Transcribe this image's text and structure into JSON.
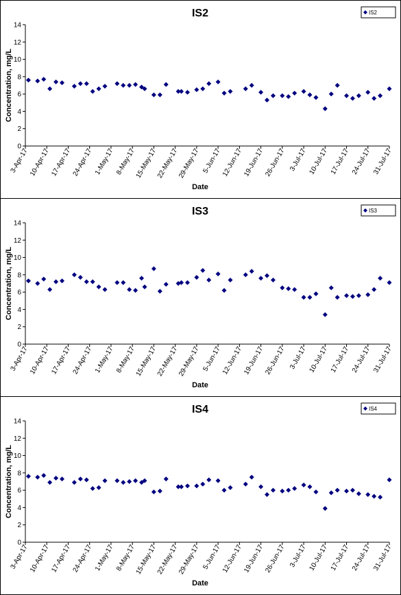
{
  "chart_data": [
    {
      "type": "scatter",
      "title": "IS2",
      "x_label": "Date",
      "y_label": "Concentration, mg/L",
      "x": [
        "2017-04-04",
        "2017-04-07",
        "2017-04-09",
        "2017-04-11",
        "2017-04-13",
        "2017-04-15",
        "2017-04-19",
        "2017-04-21",
        "2017-04-23",
        "2017-04-25",
        "2017-04-27",
        "2017-04-29",
        "2017-05-03",
        "2017-05-05",
        "2017-05-07",
        "2017-05-09",
        "2017-05-11",
        "2017-05-12",
        "2017-05-15",
        "2017-05-17",
        "2017-05-19",
        "2017-05-23",
        "2017-05-24",
        "2017-05-26",
        "2017-05-29",
        "2017-05-31",
        "2017-06-02",
        "2017-06-05",
        "2017-06-07",
        "2017-06-09",
        "2017-06-14",
        "2017-06-16",
        "2017-06-19",
        "2017-06-21",
        "2017-06-23",
        "2017-06-26",
        "2017-06-28",
        "2017-06-30",
        "2017-07-03",
        "2017-07-05",
        "2017-07-07",
        "2017-07-10",
        "2017-07-12",
        "2017-07-14",
        "2017-07-17",
        "2017-07-19",
        "2017-07-21",
        "2017-07-24",
        "2017-07-26",
        "2017-07-28",
        "2017-07-31"
      ],
      "series": [
        {
          "name": "IS2",
          "color": "#000080",
          "values": [
            7.6,
            7.5,
            7.7,
            6.6,
            7.4,
            7.3,
            6.9,
            7.2,
            7.2,
            6.3,
            6.6,
            6.9,
            7.2,
            7.0,
            7.0,
            7.1,
            6.8,
            6.6,
            5.9,
            5.9,
            7.1,
            6.3,
            6.3,
            6.2,
            6.5,
            6.6,
            7.2,
            7.4,
            6.1,
            6.3,
            6.6,
            7.0,
            6.2,
            5.3,
            5.8,
            5.8,
            5.7,
            6.1,
            6.3,
            5.9,
            5.6,
            4.3,
            6.0,
            7.0,
            5.8,
            5.5,
            5.8,
            6.2,
            5.5,
            5.8,
            6.6
          ]
        }
      ],
      "xlim": [
        "2017-04-03",
        "2017-07-31"
      ],
      "xticks": [
        {
          "value": "2017-04-03",
          "label": "3-Apr-17"
        },
        {
          "value": "2017-04-10",
          "label": "10-Apr-17"
        },
        {
          "value": "2017-04-17",
          "label": "17-Apr-17"
        },
        {
          "value": "2017-04-24",
          "label": "24-Apr-17"
        },
        {
          "value": "2017-05-01",
          "label": "1-May-17"
        },
        {
          "value": "2017-05-08",
          "label": "8-May-17"
        },
        {
          "value": "2017-05-15",
          "label": "15-May-17"
        },
        {
          "value": "2017-05-22",
          "label": "22-May-17"
        },
        {
          "value": "2017-05-29",
          "label": "29-May-17"
        },
        {
          "value": "2017-06-05",
          "label": "5-Jun-17"
        },
        {
          "value": "2017-06-12",
          "label": "12-Jun-17"
        },
        {
          "value": "2017-06-19",
          "label": "19-Jun-17"
        },
        {
          "value": "2017-06-26",
          "label": "26-Jun-17"
        },
        {
          "value": "2017-07-03",
          "label": "3-Jul-17"
        },
        {
          "value": "2017-07-10",
          "label": "10-Jul-17"
        },
        {
          "value": "2017-07-17",
          "label": "17-Jul-17"
        },
        {
          "value": "2017-07-24",
          "label": "24-Jul-17"
        },
        {
          "value": "2017-07-31",
          "label": "31-Jul-17"
        }
      ],
      "ylim": [
        0,
        14
      ],
      "yticks": [
        0,
        2,
        4,
        6,
        8,
        10,
        12,
        14
      ],
      "legend": "top-right"
    },
    {
      "type": "scatter",
      "title": "IS3",
      "x_label": "Date",
      "y_label": "Concentration, mg/L",
      "x": [
        "2017-04-04",
        "2017-04-07",
        "2017-04-09",
        "2017-04-11",
        "2017-04-13",
        "2017-04-15",
        "2017-04-19",
        "2017-04-21",
        "2017-04-23",
        "2017-04-25",
        "2017-04-27",
        "2017-04-29",
        "2017-05-03",
        "2017-05-05",
        "2017-05-07",
        "2017-05-09",
        "2017-05-11",
        "2017-05-12",
        "2017-05-15",
        "2017-05-17",
        "2017-05-19",
        "2017-05-23",
        "2017-05-24",
        "2017-05-26",
        "2017-05-29",
        "2017-05-31",
        "2017-06-02",
        "2017-06-05",
        "2017-06-07",
        "2017-06-09",
        "2017-06-14",
        "2017-06-16",
        "2017-06-19",
        "2017-06-21",
        "2017-06-23",
        "2017-06-26",
        "2017-06-28",
        "2017-06-30",
        "2017-07-03",
        "2017-07-05",
        "2017-07-07",
        "2017-07-10",
        "2017-07-12",
        "2017-07-14",
        "2017-07-17",
        "2017-07-19",
        "2017-07-21",
        "2017-07-24",
        "2017-07-26",
        "2017-07-28",
        "2017-07-31"
      ],
      "series": [
        {
          "name": "IS3",
          "color": "#000080",
          "values": [
            7.3,
            7.0,
            7.5,
            6.3,
            7.2,
            7.3,
            8.0,
            7.7,
            7.2,
            7.2,
            6.6,
            6.3,
            7.1,
            7.1,
            6.3,
            6.2,
            7.6,
            6.6,
            8.7,
            6.1,
            6.9,
            7.0,
            7.1,
            7.1,
            7.7,
            8.5,
            7.4,
            8.1,
            6.2,
            7.4,
            8.0,
            8.4,
            7.6,
            7.9,
            7.4,
            6.5,
            6.4,
            6.3,
            5.4,
            5.4,
            5.8,
            3.4,
            6.5,
            5.4,
            5.6,
            5.5,
            5.6,
            5.7,
            6.3,
            7.6,
            7.1
          ]
        }
      ],
      "xlim": [
        "2017-04-03",
        "2017-07-31"
      ],
      "xticks": [
        {
          "value": "2017-04-03",
          "label": "3-Apr-17"
        },
        {
          "value": "2017-04-10",
          "label": "10-Apr-17"
        },
        {
          "value": "2017-04-17",
          "label": "17-Apr-17"
        },
        {
          "value": "2017-04-24",
          "label": "24-Apr-17"
        },
        {
          "value": "2017-05-01",
          "label": "1-May-17"
        },
        {
          "value": "2017-05-08",
          "label": "8-May-17"
        },
        {
          "value": "2017-05-15",
          "label": "15-May-17"
        },
        {
          "value": "2017-05-22",
          "label": "22-May-17"
        },
        {
          "value": "2017-05-29",
          "label": "29-May-17"
        },
        {
          "value": "2017-06-05",
          "label": "5-Jun-17"
        },
        {
          "value": "2017-06-12",
          "label": "12-Jun-17"
        },
        {
          "value": "2017-06-19",
          "label": "19-Jun-17"
        },
        {
          "value": "2017-06-26",
          "label": "26-Jun-17"
        },
        {
          "value": "2017-07-03",
          "label": "3-Jul-17"
        },
        {
          "value": "2017-07-10",
          "label": "10-Jul-17"
        },
        {
          "value": "2017-07-17",
          "label": "17-Jul-17"
        },
        {
          "value": "2017-07-24",
          "label": "24-Jul-17"
        },
        {
          "value": "2017-07-31",
          "label": "31-Jul-17"
        }
      ],
      "ylim": [
        0,
        14
      ],
      "yticks": [
        0,
        2,
        4,
        6,
        8,
        10,
        12,
        14
      ],
      "legend": "top-right"
    },
    {
      "type": "scatter",
      "title": "IS4",
      "x_label": "Date",
      "y_label": "Concentration, mg/L",
      "x": [
        "2017-04-04",
        "2017-04-07",
        "2017-04-09",
        "2017-04-11",
        "2017-04-13",
        "2017-04-15",
        "2017-04-19",
        "2017-04-21",
        "2017-04-23",
        "2017-04-25",
        "2017-04-27",
        "2017-04-29",
        "2017-05-03",
        "2017-05-05",
        "2017-05-07",
        "2017-05-09",
        "2017-05-11",
        "2017-05-12",
        "2017-05-15",
        "2017-05-17",
        "2017-05-19",
        "2017-05-23",
        "2017-05-24",
        "2017-05-26",
        "2017-05-29",
        "2017-05-31",
        "2017-06-02",
        "2017-06-05",
        "2017-06-07",
        "2017-06-09",
        "2017-06-14",
        "2017-06-16",
        "2017-06-19",
        "2017-06-21",
        "2017-06-23",
        "2017-06-26",
        "2017-06-28",
        "2017-06-30",
        "2017-07-03",
        "2017-07-05",
        "2017-07-07",
        "2017-07-10",
        "2017-07-12",
        "2017-07-14",
        "2017-07-17",
        "2017-07-19",
        "2017-07-21",
        "2017-07-24",
        "2017-07-26",
        "2017-07-28",
        "2017-07-31"
      ],
      "series": [
        {
          "name": "IS4",
          "color": "#000080",
          "values": [
            7.6,
            7.5,
            7.7,
            6.9,
            7.4,
            7.3,
            6.9,
            7.3,
            7.2,
            6.2,
            6.3,
            7.1,
            7.1,
            6.9,
            7.0,
            7.1,
            6.9,
            7.1,
            5.8,
            5.9,
            7.3,
            6.4,
            6.4,
            6.5,
            6.5,
            6.7,
            7.2,
            7.1,
            6.0,
            6.3,
            6.7,
            7.5,
            6.4,
            5.5,
            6.0,
            5.9,
            6.0,
            6.2,
            6.6,
            6.4,
            5.8,
            3.9,
            5.7,
            6.0,
            5.9,
            6.0,
            5.6,
            5.5,
            5.3,
            5.2,
            7.2
          ]
        }
      ],
      "xlim": [
        "2017-04-03",
        "2017-07-31"
      ],
      "xticks": [
        {
          "value": "2017-04-03",
          "label": "3-Apr-17"
        },
        {
          "value": "2017-04-10",
          "label": "10-Apr-17"
        },
        {
          "value": "2017-04-17",
          "label": "17-Apr-17"
        },
        {
          "value": "2017-04-24",
          "label": "24-Apr-17"
        },
        {
          "value": "2017-05-01",
          "label": "1-May-17"
        },
        {
          "value": "2017-05-08",
          "label": "8-May-17"
        },
        {
          "value": "2017-05-15",
          "label": "15-May-17"
        },
        {
          "value": "2017-05-22",
          "label": "22-May-17"
        },
        {
          "value": "2017-05-29",
          "label": "29-May-17"
        },
        {
          "value": "2017-06-05",
          "label": "5-Jun-17"
        },
        {
          "value": "2017-06-12",
          "label": "12-Jun-17"
        },
        {
          "value": "2017-06-19",
          "label": "19-Jun-17"
        },
        {
          "value": "2017-06-26",
          "label": "26-Jun-17"
        },
        {
          "value": "2017-07-03",
          "label": "3-Jul-17"
        },
        {
          "value": "2017-07-10",
          "label": "10-Jul-17"
        },
        {
          "value": "2017-07-17",
          "label": "17-Jul-17"
        },
        {
          "value": "2017-07-24",
          "label": "24-Jul-17"
        },
        {
          "value": "2017-07-31",
          "label": "31-Jul-17"
        }
      ],
      "ylim": [
        0,
        14
      ],
      "yticks": [
        0,
        2,
        4,
        6,
        8,
        10,
        12,
        14
      ],
      "legend": "top-right"
    }
  ]
}
